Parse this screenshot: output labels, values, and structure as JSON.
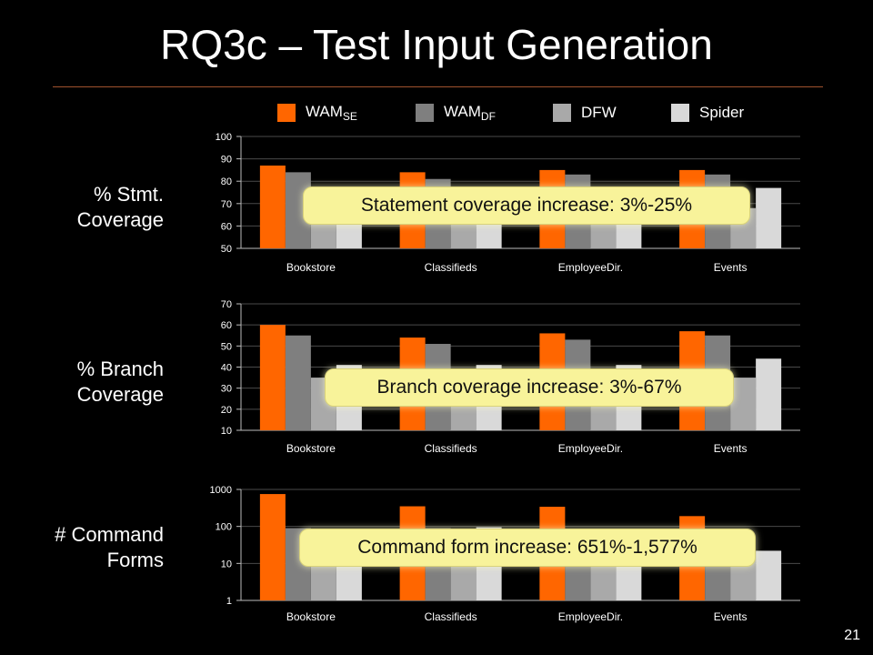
{
  "slide": {
    "title": "RQ3c – Test Input Generation",
    "page_number": "21"
  },
  "colors": {
    "title_rule": "#a0522d",
    "WAM_SE": "#ff6600",
    "WAM_DF": "#7f7f7f",
    "DFW": "#a9a9a9",
    "Spider": "#d9d9d9"
  },
  "legend": [
    {
      "base": "WAM",
      "sub": "SE",
      "color": "#ff6600"
    },
    {
      "base": "WAM",
      "sub": "DF",
      "color": "#7f7f7f"
    },
    {
      "base": "DFW",
      "sub": "",
      "color": "#a9a9a9"
    },
    {
      "base": "Spider",
      "sub": "",
      "color": "#d9d9d9"
    }
  ],
  "rows": [
    {
      "label_line1": "% Stmt.",
      "label_line2": "Coverage",
      "callout": "Statement coverage increase: 3%-25%"
    },
    {
      "label_line1": "% Branch",
      "label_line2": "Coverage",
      "callout": "Branch coverage increase: 3%-67%"
    },
    {
      "label_line1": "# Command",
      "label_line2": "Forms",
      "callout": "Command form increase: 651%-1,577%"
    }
  ],
  "chart_data": [
    {
      "type": "bar",
      "categories": [
        "Bookstore",
        "Classifieds",
        "EmployeeDir.",
        "Events"
      ],
      "series": [
        {
          "name": "WAM_SE",
          "values": [
            87,
            84,
            85,
            85
          ]
        },
        {
          "name": "WAM_DF",
          "values": [
            84,
            81,
            83,
            83
          ]
        },
        {
          "name": "DFW",
          "values": [
            68,
            68,
            68,
            68
          ]
        },
        {
          "name": "Spider",
          "values": [
            76,
            76,
            76,
            77
          ]
        }
      ],
      "ylim": [
        50,
        100
      ],
      "yticks": [
        "50",
        "60",
        "70",
        "80",
        "90",
        "100"
      ],
      "scale": "linear",
      "grid": true,
      "legend": "top"
    },
    {
      "type": "bar",
      "categories": [
        "Bookstore",
        "Classifieds",
        "EmployeeDir.",
        "Events"
      ],
      "series": [
        {
          "name": "WAM_SE",
          "values": [
            60,
            54,
            56,
            57
          ]
        },
        {
          "name": "WAM_DF",
          "values": [
            55,
            51,
            53,
            55
          ]
        },
        {
          "name": "DFW",
          "values": [
            35,
            35,
            35,
            35
          ]
        },
        {
          "name": "Spider",
          "values": [
            41,
            41,
            41,
            44
          ]
        }
      ],
      "ylim": [
        10,
        70
      ],
      "yticks": [
        "10",
        "20",
        "30",
        "40",
        "50",
        "60",
        "70"
      ],
      "scale": "linear",
      "grid": true,
      "legend": "top"
    },
    {
      "type": "bar",
      "categories": [
        "Bookstore",
        "Classifieds",
        "EmployeeDir.",
        "Events"
      ],
      "series": [
        {
          "name": "WAM_SE",
          "values": [
            750,
            350,
            340,
            190
          ]
        },
        {
          "name": "WAM_DF",
          "values": [
            90,
            90,
            30,
            20
          ]
        },
        {
          "name": "DFW",
          "values": [
            45,
            40,
            30,
            20
          ]
        },
        {
          "name": "Spider",
          "values": [
            60,
            95,
            30,
            22
          ]
        }
      ],
      "ylim": [
        1,
        1000
      ],
      "yticks": [
        "1",
        "10",
        "100",
        "1000"
      ],
      "scale": "log",
      "grid": true,
      "legend": "top"
    }
  ]
}
